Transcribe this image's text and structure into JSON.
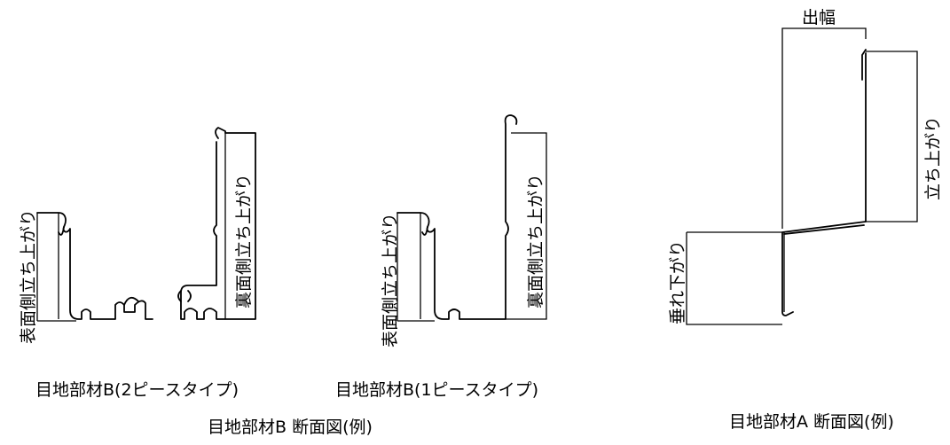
{
  "captions": {
    "b_two_piece": "目地部材B(2ピースタイプ)",
    "b_one_piece": "目地部材B(1ピースタイプ)",
    "b_section": "目地部材B 断面図(例)",
    "a_section": "目地部材A 断面図(例)"
  },
  "labels": {
    "front_rise": "表面側立ち上がり",
    "back_rise": "裏面側立ち上がり",
    "out_width": "出幅",
    "rise": "立ち上がり",
    "hang_down": "垂れ下がり"
  }
}
